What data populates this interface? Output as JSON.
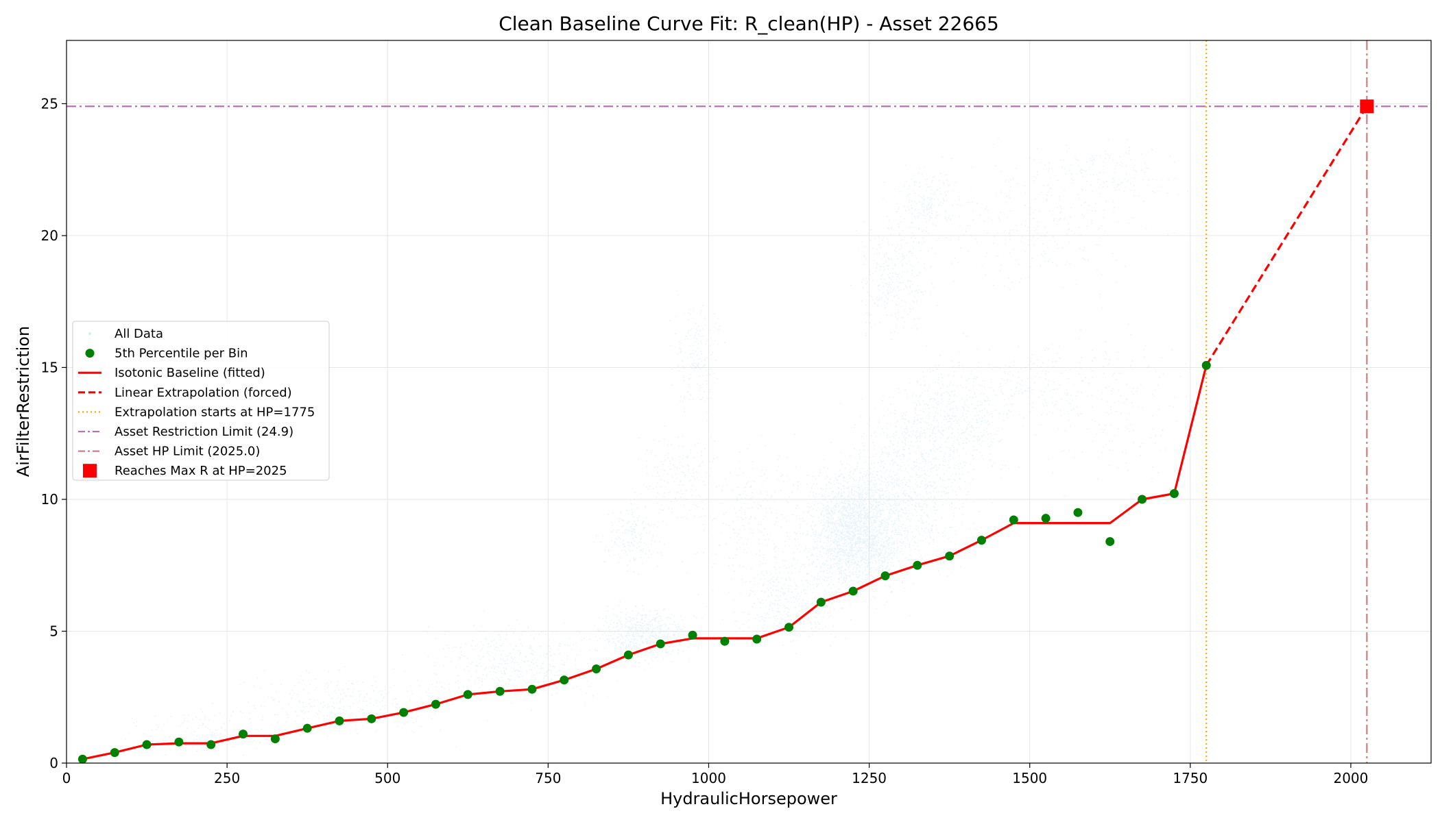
{
  "chart_data": {
    "type": "scatter",
    "title": "Clean Baseline Curve Fit: R_clean(HP) - Asset 22665",
    "xlabel": "HydraulicHorsepower",
    "ylabel": "AirFilterRestriction",
    "xlim": [
      0,
      2125
    ],
    "ylim": [
      0,
      27.4
    ],
    "xticks": [
      0,
      250,
      500,
      750,
      1000,
      1250,
      1500,
      1750,
      2000
    ],
    "yticks": [
      0,
      5,
      10,
      15,
      20,
      25
    ],
    "grid": true,
    "legend_position": "center-left",
    "colors": {
      "all_data": "#add8e6",
      "percentile": "#008000",
      "baseline": "#ff0000",
      "extrapolation": "#ff0000",
      "extrap_start": "#ffa500",
      "restriction_limit": "#b573b5",
      "hp_limit": "#cd7f7f",
      "max_marker": "#ff0000"
    },
    "legend": [
      {
        "label": "All Data",
        "kind": "all_data"
      },
      {
        "label": "5th Percentile per Bin",
        "kind": "percentile"
      },
      {
        "label": "Isotonic Baseline (fitted)",
        "kind": "baseline"
      },
      {
        "label": "Linear Extrapolation (forced)",
        "kind": "extrapolation"
      },
      {
        "label": "Extrapolation starts at HP=1775",
        "kind": "extrap_start"
      },
      {
        "label": "Asset Restriction Limit (24.9)",
        "kind": "restriction_limit"
      },
      {
        "label": "Asset HP Limit (2025.0)",
        "kind": "hp_limit"
      },
      {
        "label": "Reaches Max R at HP=2025",
        "kind": "max_marker"
      }
    ],
    "percentile_points": {
      "x": [
        25,
        75,
        125,
        175,
        225,
        275,
        325,
        375,
        425,
        475,
        525,
        575,
        625,
        675,
        725,
        775,
        825,
        875,
        925,
        975,
        1025,
        1075,
        1125,
        1175,
        1225,
        1275,
        1325,
        1375,
        1425,
        1475,
        1525,
        1575,
        1625,
        1675,
        1725,
        1775
      ],
      "y": [
        0.15,
        0.4,
        0.7,
        0.8,
        0.7,
        1.1,
        0.92,
        1.32,
        1.6,
        1.68,
        1.92,
        2.23,
        2.6,
        2.72,
        2.8,
        3.15,
        3.57,
        4.1,
        4.52,
        4.85,
        4.62,
        4.7,
        5.15,
        6.1,
        6.52,
        7.1,
        7.5,
        7.85,
        8.45,
        9.22,
        9.28,
        9.5,
        8.4,
        10.0,
        10.22,
        15.08
      ]
    },
    "isotonic_baseline": {
      "x": [
        25,
        75,
        125,
        175,
        225,
        275,
        325,
        375,
        425,
        475,
        525,
        575,
        625,
        675,
        725,
        775,
        825,
        875,
        925,
        975,
        1025,
        1075,
        1125,
        1175,
        1225,
        1275,
        1325,
        1375,
        1425,
        1475,
        1525,
        1575,
        1625,
        1675,
        1725,
        1775
      ],
      "y": [
        0.15,
        0.4,
        0.7,
        0.75,
        0.75,
        1.03,
        1.03,
        1.32,
        1.6,
        1.68,
        1.92,
        2.23,
        2.6,
        2.72,
        2.8,
        3.15,
        3.57,
        4.1,
        4.52,
        4.73,
        4.73,
        4.73,
        5.15,
        6.1,
        6.52,
        7.1,
        7.5,
        7.85,
        8.45,
        9.1,
        9.1,
        9.1,
        9.1,
        10.0,
        10.22,
        15.08
      ]
    },
    "linear_extrapolation": {
      "x": [
        1775,
        2025
      ],
      "y": [
        15.08,
        24.9
      ]
    },
    "extrapolation_start_hp": 1775,
    "restriction_limit": 24.9,
    "hp_limit": 2025.0,
    "max_marker": {
      "x": 2025,
      "y": 24.9
    }
  }
}
